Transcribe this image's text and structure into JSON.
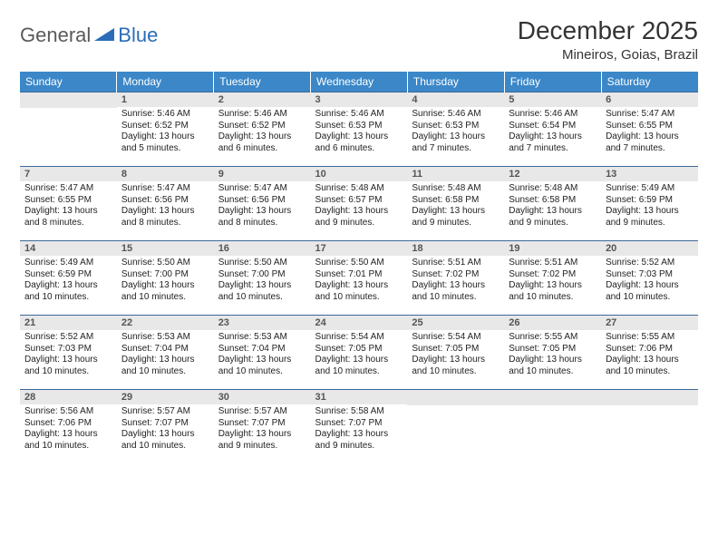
{
  "logo": {
    "word1": "General",
    "word2": "Blue"
  },
  "title": "December 2025",
  "location": "Mineiros, Goias, Brazil",
  "colors": {
    "header_bg": "#3b87c8",
    "header_text": "#ffffff",
    "daynum_bg": "#e8e8e8",
    "daynum_text": "#555555",
    "row_border": "#3b6a99",
    "body_text": "#222222",
    "logo_gray": "#5a5a5a",
    "logo_blue": "#2a6db8"
  },
  "weekdays": [
    "Sunday",
    "Monday",
    "Tuesday",
    "Wednesday",
    "Thursday",
    "Friday",
    "Saturday"
  ],
  "grid": [
    [
      null,
      {
        "n": "1",
        "sr": "5:46 AM",
        "ss": "6:52 PM",
        "dl": "13 hours and 5 minutes."
      },
      {
        "n": "2",
        "sr": "5:46 AM",
        "ss": "6:52 PM",
        "dl": "13 hours and 6 minutes."
      },
      {
        "n": "3",
        "sr": "5:46 AM",
        "ss": "6:53 PM",
        "dl": "13 hours and 6 minutes."
      },
      {
        "n": "4",
        "sr": "5:46 AM",
        "ss": "6:53 PM",
        "dl": "13 hours and 7 minutes."
      },
      {
        "n": "5",
        "sr": "5:46 AM",
        "ss": "6:54 PM",
        "dl": "13 hours and 7 minutes."
      },
      {
        "n": "6",
        "sr": "5:47 AM",
        "ss": "6:55 PM",
        "dl": "13 hours and 7 minutes."
      }
    ],
    [
      {
        "n": "7",
        "sr": "5:47 AM",
        "ss": "6:55 PM",
        "dl": "13 hours and 8 minutes."
      },
      {
        "n": "8",
        "sr": "5:47 AM",
        "ss": "6:56 PM",
        "dl": "13 hours and 8 minutes."
      },
      {
        "n": "9",
        "sr": "5:47 AM",
        "ss": "6:56 PM",
        "dl": "13 hours and 8 minutes."
      },
      {
        "n": "10",
        "sr": "5:48 AM",
        "ss": "6:57 PM",
        "dl": "13 hours and 9 minutes."
      },
      {
        "n": "11",
        "sr": "5:48 AM",
        "ss": "6:58 PM",
        "dl": "13 hours and 9 minutes."
      },
      {
        "n": "12",
        "sr": "5:48 AM",
        "ss": "6:58 PM",
        "dl": "13 hours and 9 minutes."
      },
      {
        "n": "13",
        "sr": "5:49 AM",
        "ss": "6:59 PM",
        "dl": "13 hours and 9 minutes."
      }
    ],
    [
      {
        "n": "14",
        "sr": "5:49 AM",
        "ss": "6:59 PM",
        "dl": "13 hours and 10 minutes."
      },
      {
        "n": "15",
        "sr": "5:50 AM",
        "ss": "7:00 PM",
        "dl": "13 hours and 10 minutes."
      },
      {
        "n": "16",
        "sr": "5:50 AM",
        "ss": "7:00 PM",
        "dl": "13 hours and 10 minutes."
      },
      {
        "n": "17",
        "sr": "5:50 AM",
        "ss": "7:01 PM",
        "dl": "13 hours and 10 minutes."
      },
      {
        "n": "18",
        "sr": "5:51 AM",
        "ss": "7:02 PM",
        "dl": "13 hours and 10 minutes."
      },
      {
        "n": "19",
        "sr": "5:51 AM",
        "ss": "7:02 PM",
        "dl": "13 hours and 10 minutes."
      },
      {
        "n": "20",
        "sr": "5:52 AM",
        "ss": "7:03 PM",
        "dl": "13 hours and 10 minutes."
      }
    ],
    [
      {
        "n": "21",
        "sr": "5:52 AM",
        "ss": "7:03 PM",
        "dl": "13 hours and 10 minutes."
      },
      {
        "n": "22",
        "sr": "5:53 AM",
        "ss": "7:04 PM",
        "dl": "13 hours and 10 minutes."
      },
      {
        "n": "23",
        "sr": "5:53 AM",
        "ss": "7:04 PM",
        "dl": "13 hours and 10 minutes."
      },
      {
        "n": "24",
        "sr": "5:54 AM",
        "ss": "7:05 PM",
        "dl": "13 hours and 10 minutes."
      },
      {
        "n": "25",
        "sr": "5:54 AM",
        "ss": "7:05 PM",
        "dl": "13 hours and 10 minutes."
      },
      {
        "n": "26",
        "sr": "5:55 AM",
        "ss": "7:05 PM",
        "dl": "13 hours and 10 minutes."
      },
      {
        "n": "27",
        "sr": "5:55 AM",
        "ss": "7:06 PM",
        "dl": "13 hours and 10 minutes."
      }
    ],
    [
      {
        "n": "28",
        "sr": "5:56 AM",
        "ss": "7:06 PM",
        "dl": "13 hours and 10 minutes."
      },
      {
        "n": "29",
        "sr": "5:57 AM",
        "ss": "7:07 PM",
        "dl": "13 hours and 10 minutes."
      },
      {
        "n": "30",
        "sr": "5:57 AM",
        "ss": "7:07 PM",
        "dl": "13 hours and 9 minutes."
      },
      {
        "n": "31",
        "sr": "5:58 AM",
        "ss": "7:07 PM",
        "dl": "13 hours and 9 minutes."
      },
      null,
      null,
      null
    ]
  ],
  "labels": {
    "sunrise": "Sunrise:",
    "sunset": "Sunset:",
    "daylight": "Daylight:"
  }
}
